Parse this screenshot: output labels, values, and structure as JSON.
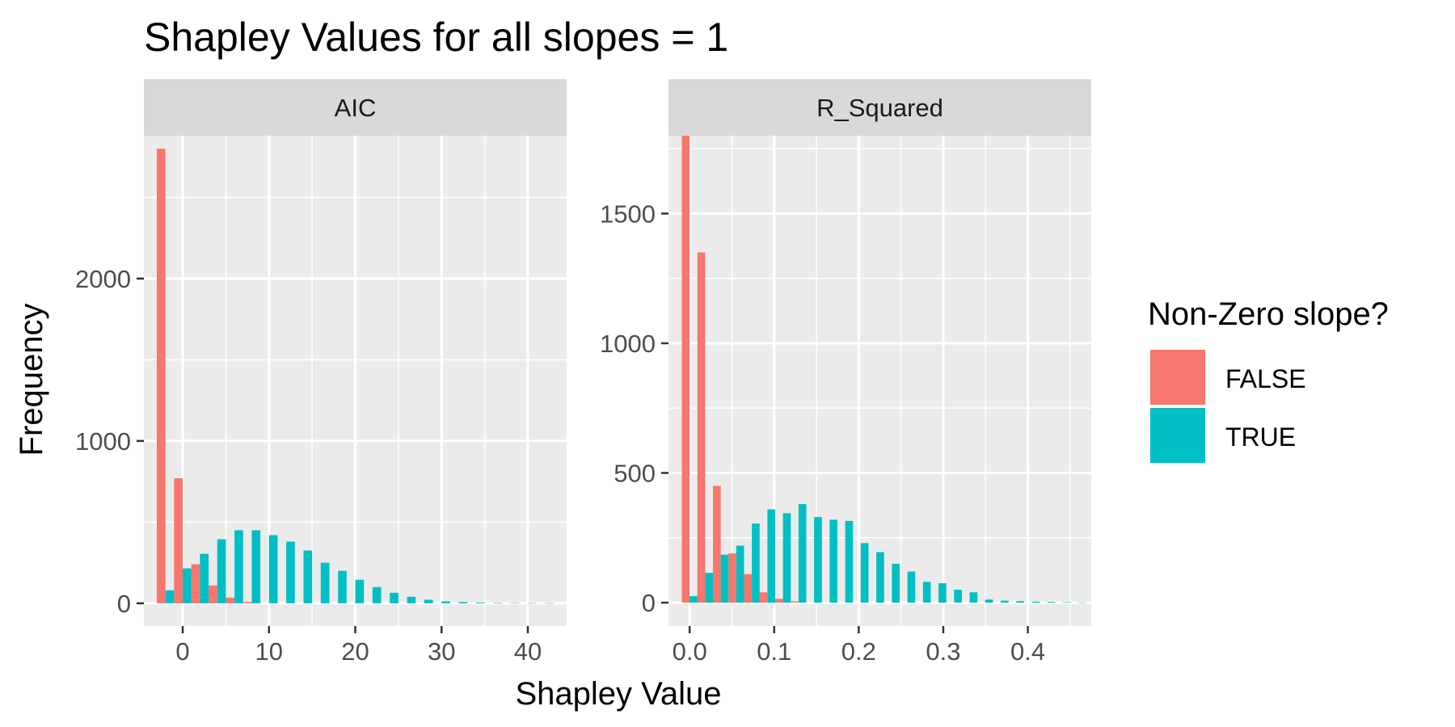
{
  "chart_data": {
    "type": "bar",
    "title": "Shapley Values for all slopes = 1",
    "xlabel": "Shapley Value",
    "ylabel": "Frequency",
    "legend": {
      "title": "Non-Zero slope?",
      "position": "right",
      "entries": [
        {
          "label": "FALSE",
          "color": "#F8766D"
        },
        {
          "label": "TRUE",
          "color": "#00BFC4"
        }
      ]
    },
    "colors": {
      "panel": "#EBEBEB",
      "strip": "#D9D9D9",
      "grid": "#FFFFFF",
      "tick": "#333333"
    },
    "grid": true,
    "panels": [
      {
        "strip": "AIC",
        "xlim": [
          -4.5,
          44.5
        ],
        "ylim": [
          -140,
          2880
        ],
        "xticks": [
          0,
          10,
          20,
          30,
          40
        ],
        "xtick_labels": [
          "0",
          "10",
          "20",
          "30",
          "40"
        ],
        "yticks": [
          0,
          1000,
          2000
        ],
        "ytick_labels": [
          "0",
          "1000",
          "2000"
        ],
        "bin_width": 2.0,
        "series": [
          {
            "name": "FALSE",
            "x": [
              -2,
              0,
              2,
              4,
              6,
              8
            ],
            "values": [
              2800,
              770,
              240,
              110,
              35,
              8
            ]
          },
          {
            "name": "TRUE",
            "x": [
              -2,
              0,
              2,
              4,
              6,
              8,
              10,
              12,
              14,
              16,
              18,
              20,
              22,
              24,
              26,
              28,
              30,
              32,
              34,
              36,
              38,
              40,
              42
            ],
            "values": [
              80,
              215,
              305,
              395,
              450,
              450,
              420,
              380,
              325,
              250,
              200,
              145,
              100,
              65,
              40,
              22,
              12,
              8,
              5,
              3,
              2,
              1,
              1
            ]
          }
        ]
      },
      {
        "strip": "R_Squared",
        "xlim": [
          -0.025,
          0.475
        ],
        "ylim": [
          -90,
          1800
        ],
        "xticks": [
          0.0,
          0.1,
          0.2,
          0.3,
          0.4
        ],
        "xtick_labels": [
          "0.0",
          "0.1",
          "0.2",
          "0.3",
          "0.4"
        ],
        "yticks": [
          0,
          500,
          1000,
          1500
        ],
        "ytick_labels": [
          "0",
          "500",
          "1000",
          "1500"
        ],
        "bin_width": 0.0184,
        "series": [
          {
            "name": "FALSE",
            "x": [
              0.0,
              0.0184,
              0.0368,
              0.0552,
              0.0736,
              0.092,
              0.1104,
              0.1288
            ],
            "values": [
              1800,
              1350,
              450,
              190,
              110,
              40,
              15,
              5
            ]
          },
          {
            "name": "TRUE",
            "x": [
              0.0,
              0.0184,
              0.0368,
              0.0552,
              0.0736,
              0.092,
              0.1104,
              0.1288,
              0.1472,
              0.1656,
              0.184,
              0.2024,
              0.2208,
              0.2392,
              0.2576,
              0.276,
              0.2944,
              0.3128,
              0.3312,
              0.3496,
              0.368,
              0.3864,
              0.4048,
              0.4232,
              0.4416,
              0.46
            ],
            "values": [
              25,
              115,
              185,
              220,
              305,
              360,
              345,
              380,
              330,
              320,
              315,
              230,
              195,
              150,
              120,
              80,
              75,
              50,
              40,
              12,
              8,
              6,
              4,
              3,
              2,
              1
            ]
          }
        ]
      }
    ]
  }
}
